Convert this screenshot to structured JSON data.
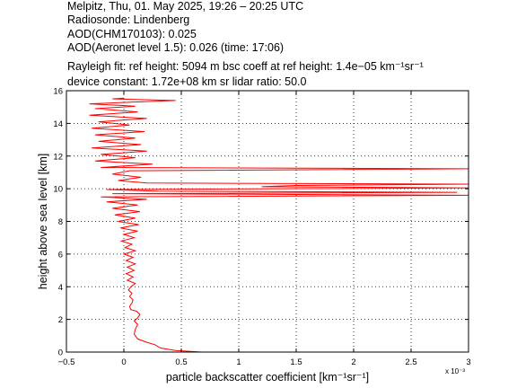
{
  "header": {
    "line1": "Melpitz, Thu, 01. May 2025, 19:26 – 20:25 UTC",
    "line2": "Radiosonde: Lindenberg",
    "line3": "AOD(CHM170103): 0.025",
    "line4": "AOD(Aeronet level 1.5): 0.026   (time: 17:06)",
    "line5": "Rayleigh fit:     ref height: 5094 m     bsc coeff at ref height: 1.4e−05 km⁻¹sr⁻¹",
    "line6": "device constant: 1.72e+08 km sr     lidar ratio: 50.0"
  },
  "chart_data": {
    "type": "line",
    "xlabel": "particle backscatter coefficient [km⁻¹sr⁻¹]",
    "ylabel": "height above sea level [km]",
    "x_multiplier_label": "x 10⁻³",
    "xlim": [
      -0.5,
      3
    ],
    "ylim": [
      0,
      16
    ],
    "xticks": [
      -0.5,
      0,
      0.5,
      1,
      1.5,
      2,
      2.5,
      3
    ],
    "xtick_labels": [
      "−0.5",
      "0",
      "0.5",
      "1",
      "1.5",
      "2",
      "2.5",
      "3"
    ],
    "yticks": [
      0,
      2,
      4,
      6,
      8,
      10,
      12,
      14,
      16
    ],
    "ytick_labels": [
      "0",
      "2",
      "4",
      "6",
      "8",
      "10",
      "12",
      "14",
      "16"
    ],
    "grid": true,
    "series": [
      {
        "color": "#ff0000",
        "points": [
          [
            0.68,
            0.0
          ],
          [
            0.45,
            0.1
          ],
          [
            0.32,
            0.25
          ],
          [
            0.27,
            0.45
          ],
          [
            0.2,
            0.6
          ],
          [
            0.12,
            0.8
          ],
          [
            0.09,
            1.1
          ],
          [
            0.1,
            1.4
          ],
          [
            0.12,
            1.7
          ],
          [
            0.09,
            1.9
          ],
          [
            0.12,
            2.1
          ],
          [
            0.14,
            2.3
          ],
          [
            0.11,
            2.5
          ],
          [
            0.06,
            2.6
          ],
          [
            0.05,
            2.8
          ],
          [
            0.07,
            3.0
          ],
          [
            0.08,
            3.2
          ],
          [
            0.05,
            3.4
          ],
          [
            0.07,
            3.6
          ],
          [
            0.04,
            3.8
          ],
          [
            0.06,
            4.0
          ],
          [
            0.1,
            4.2
          ],
          [
            0.03,
            4.4
          ],
          [
            0.08,
            4.6
          ],
          [
            0.02,
            4.8
          ],
          [
            0.09,
            5.0
          ],
          [
            0.03,
            5.2
          ],
          [
            0.1,
            5.4
          ],
          [
            0.02,
            5.6
          ],
          [
            0.08,
            5.8
          ],
          [
            0.0,
            6.0
          ],
          [
            0.1,
            6.2
          ],
          [
            0.01,
            6.4
          ],
          [
            0.07,
            6.6
          ],
          [
            -0.02,
            6.8
          ],
          [
            0.09,
            7.0
          ],
          [
            0.0,
            7.2
          ],
          [
            0.12,
            7.4
          ],
          [
            -0.03,
            7.6
          ],
          [
            0.13,
            7.8
          ],
          [
            -0.05,
            8.0
          ],
          [
            0.1,
            8.2
          ],
          [
            -0.08,
            8.4
          ],
          [
            0.14,
            8.6
          ],
          [
            -0.1,
            8.8
          ],
          [
            0.12,
            9.0
          ],
          [
            -0.15,
            9.2
          ],
          [
            0.2,
            9.35
          ],
          [
            -0.2,
            9.5
          ],
          [
            3.0,
            9.6
          ],
          [
            -0.1,
            9.7
          ],
          [
            2.9,
            9.78
          ],
          [
            0.3,
            9.85
          ],
          [
            -0.15,
            9.95
          ],
          [
            3.0,
            10.05
          ],
          [
            1.2,
            10.12
          ],
          [
            1.5,
            10.2
          ],
          [
            3.0,
            10.28
          ],
          [
            0.2,
            10.35
          ],
          [
            -0.05,
            10.5
          ],
          [
            0.15,
            10.7
          ],
          [
            -0.1,
            10.9
          ],
          [
            0.05,
            11.1
          ],
          [
            3.0,
            11.22
          ],
          [
            -0.2,
            11.3
          ],
          [
            0.25,
            11.5
          ],
          [
            -0.25,
            11.7
          ],
          [
            0.1,
            11.9
          ],
          [
            -0.2,
            12.1
          ],
          [
            0.2,
            12.3
          ],
          [
            -0.28,
            12.5
          ],
          [
            0.15,
            12.7
          ],
          [
            -0.22,
            12.9
          ],
          [
            0.1,
            13.1
          ],
          [
            -0.25,
            13.3
          ],
          [
            0.18,
            13.5
          ],
          [
            -0.28,
            13.7
          ],
          [
            0.05,
            13.9
          ],
          [
            -0.22,
            14.1
          ],
          [
            0.2,
            14.3
          ],
          [
            -0.3,
            14.5
          ],
          [
            0.12,
            14.7
          ],
          [
            -0.25,
            14.9
          ],
          [
            0.1,
            15.05
          ],
          [
            -0.3,
            15.2
          ],
          [
            0.45,
            15.4
          ],
          [
            -0.1,
            15.5
          ],
          [
            0.0,
            15.55
          ]
        ]
      }
    ]
  }
}
